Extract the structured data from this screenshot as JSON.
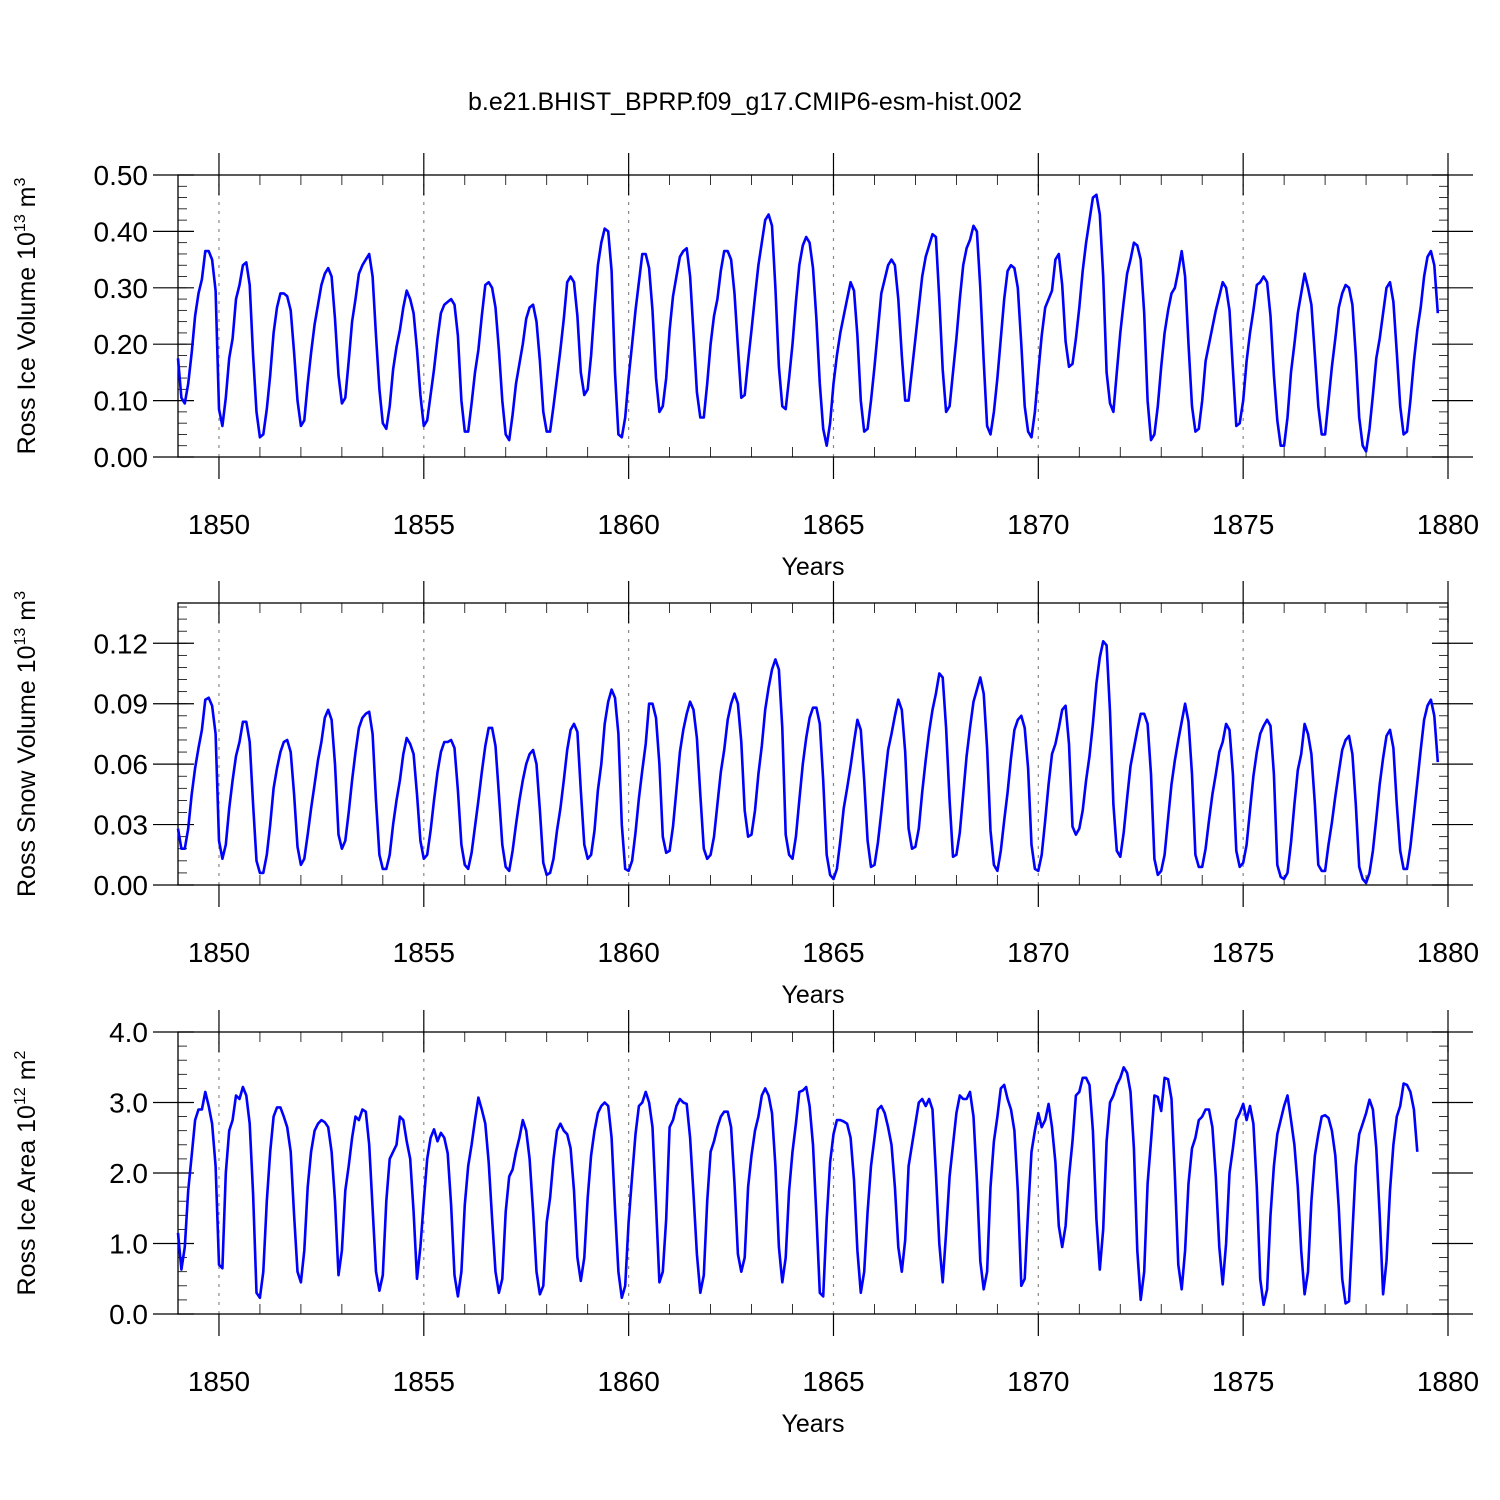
{
  "title": "b.e21.BHIST_BPRP.f09_g17.CMIP6-esm-hist.002",
  "colors": {
    "series": "#0000ff",
    "grid": "#888888",
    "axis": "#000000"
  },
  "chart_data": [
    {
      "type": "line",
      "ylabel": "Ross Ice Volume 10",
      "ylabel_exp": "13",
      "ylabel_unit": " m",
      "ylabel_unit_exp": "3",
      "xlabel": "Years",
      "xlim": [
        1849.0,
        1880.0
      ],
      "ylim": [
        0.0,
        0.5
      ],
      "x_ticks": [
        1850,
        1855,
        1860,
        1865,
        1870,
        1875,
        1880
      ],
      "y_ticks": [
        0.0,
        0.1,
        0.2,
        0.3,
        0.4,
        0.5
      ],
      "y_tick_labels": [
        "0.00",
        "0.10",
        "0.20",
        "0.30",
        "0.40",
        "0.50"
      ],
      "grid": "dashed vertical at 5-year ticks",
      "start_year": 1849.0,
      "step": 0.0833333,
      "values": [
        0.175,
        0.105,
        0.095,
        0.13,
        0.185,
        0.25,
        0.29,
        0.315,
        0.365,
        0.365,
        0.35,
        0.295,
        0.085,
        0.055,
        0.105,
        0.175,
        0.21,
        0.28,
        0.305,
        0.34,
        0.345,
        0.305,
        0.18,
        0.08,
        0.035,
        0.04,
        0.085,
        0.145,
        0.22,
        0.265,
        0.29,
        0.29,
        0.285,
        0.26,
        0.185,
        0.1,
        0.055,
        0.065,
        0.13,
        0.185,
        0.235,
        0.27,
        0.305,
        0.325,
        0.335,
        0.32,
        0.245,
        0.145,
        0.095,
        0.105,
        0.17,
        0.24,
        0.28,
        0.325,
        0.34,
        0.35,
        0.36,
        0.32,
        0.215,
        0.12,
        0.06,
        0.05,
        0.09,
        0.155,
        0.195,
        0.225,
        0.265,
        0.295,
        0.28,
        0.255,
        0.19,
        0.11,
        0.055,
        0.065,
        0.11,
        0.155,
        0.21,
        0.255,
        0.27,
        0.275,
        0.28,
        0.27,
        0.215,
        0.1,
        0.045,
        0.045,
        0.095,
        0.15,
        0.19,
        0.25,
        0.305,
        0.31,
        0.3,
        0.265,
        0.19,
        0.1,
        0.04,
        0.03,
        0.075,
        0.13,
        0.165,
        0.2,
        0.245,
        0.265,
        0.27,
        0.24,
        0.17,
        0.08,
        0.045,
        0.045,
        0.09,
        0.14,
        0.19,
        0.245,
        0.31,
        0.32,
        0.31,
        0.25,
        0.15,
        0.11,
        0.12,
        0.18,
        0.265,
        0.34,
        0.38,
        0.405,
        0.4,
        0.33,
        0.15,
        0.04,
        0.035,
        0.07,
        0.14,
        0.2,
        0.26,
        0.31,
        0.36,
        0.36,
        0.335,
        0.26,
        0.14,
        0.08,
        0.09,
        0.14,
        0.225,
        0.285,
        0.32,
        0.355,
        0.365,
        0.37,
        0.32,
        0.22,
        0.115,
        0.07,
        0.07,
        0.13,
        0.2,
        0.25,
        0.28,
        0.33,
        0.365,
        0.365,
        0.35,
        0.29,
        0.195,
        0.105,
        0.11,
        0.17,
        0.225,
        0.285,
        0.34,
        0.38,
        0.42,
        0.43,
        0.41,
        0.3,
        0.16,
        0.09,
        0.085,
        0.14,
        0.2,
        0.275,
        0.34,
        0.375,
        0.39,
        0.38,
        0.335,
        0.245,
        0.13,
        0.05,
        0.02,
        0.06,
        0.13,
        0.18,
        0.22,
        0.25,
        0.28,
        0.31,
        0.295,
        0.215,
        0.1,
        0.045,
        0.05,
        0.1,
        0.16,
        0.225,
        0.29,
        0.315,
        0.34,
        0.35,
        0.34,
        0.28,
        0.18,
        0.1,
        0.1,
        0.155,
        0.21,
        0.265,
        0.32,
        0.355,
        0.375,
        0.395,
        0.39,
        0.28,
        0.155,
        0.08,
        0.09,
        0.15,
        0.21,
        0.28,
        0.34,
        0.37,
        0.385,
        0.41,
        0.4,
        0.3,
        0.17,
        0.055,
        0.04,
        0.08,
        0.14,
        0.21,
        0.28,
        0.33,
        0.34,
        0.335,
        0.3,
        0.2,
        0.09,
        0.045,
        0.035,
        0.08,
        0.15,
        0.215,
        0.265,
        0.28,
        0.295,
        0.35,
        0.36,
        0.305,
        0.205,
        0.16,
        0.165,
        0.21,
        0.265,
        0.33,
        0.38,
        0.42,
        0.46,
        0.465,
        0.43,
        0.32,
        0.15,
        0.095,
        0.08,
        0.15,
        0.22,
        0.275,
        0.325,
        0.35,
        0.38,
        0.375,
        0.35,
        0.255,
        0.1,
        0.03,
        0.04,
        0.09,
        0.16,
        0.22,
        0.26,
        0.29,
        0.3,
        0.33,
        0.365,
        0.32,
        0.2,
        0.09,
        0.045,
        0.05,
        0.1,
        0.17,
        0.2,
        0.23,
        0.26,
        0.285,
        0.31,
        0.3,
        0.26,
        0.155,
        0.055,
        0.06,
        0.1,
        0.17,
        0.22,
        0.26,
        0.305,
        0.31,
        0.32,
        0.31,
        0.25,
        0.145,
        0.065,
        0.02,
        0.02,
        0.07,
        0.15,
        0.2,
        0.255,
        0.29,
        0.325,
        0.3,
        0.27,
        0.18,
        0.09,
        0.04,
        0.04,
        0.1,
        0.16,
        0.21,
        0.265,
        0.29,
        0.305,
        0.3,
        0.27,
        0.18,
        0.07,
        0.02,
        0.01,
        0.05,
        0.11,
        0.175,
        0.21,
        0.255,
        0.3,
        0.31,
        0.275,
        0.185,
        0.09,
        0.04,
        0.045,
        0.1,
        0.17,
        0.225,
        0.265,
        0.32,
        0.355,
        0.365,
        0.34,
        0.255
      ]
    },
    {
      "type": "line",
      "ylabel": "Ross Snow Volume 10",
      "ylabel_exp": "13",
      "ylabel_unit": " m",
      "ylabel_unit_exp": "3",
      "xlabel": "Years",
      "xlim": [
        1849.0,
        1880.0
      ],
      "ylim": [
        0.0,
        0.14
      ],
      "x_ticks": [
        1850,
        1855,
        1860,
        1865,
        1870,
        1875,
        1880
      ],
      "y_ticks": [
        0.0,
        0.03,
        0.06,
        0.09,
        0.12
      ],
      "y_tick_labels": [
        "0.00",
        "0.03",
        "0.06",
        "0.09",
        "0.12"
      ],
      "grid": "dashed vertical at 5-year ticks",
      "start_year": 1849.0,
      "step": 0.0833333,
      "values": [
        0.028,
        0.018,
        0.018,
        0.028,
        0.045,
        0.058,
        0.068,
        0.077,
        0.092,
        0.093,
        0.089,
        0.075,
        0.022,
        0.013,
        0.02,
        0.038,
        0.052,
        0.064,
        0.071,
        0.081,
        0.081,
        0.071,
        0.04,
        0.012,
        0.006,
        0.006,
        0.015,
        0.03,
        0.048,
        0.058,
        0.066,
        0.071,
        0.072,
        0.066,
        0.045,
        0.019,
        0.01,
        0.013,
        0.025,
        0.038,
        0.05,
        0.062,
        0.071,
        0.083,
        0.087,
        0.082,
        0.06,
        0.025,
        0.018,
        0.022,
        0.036,
        0.052,
        0.066,
        0.078,
        0.083,
        0.085,
        0.086,
        0.075,
        0.042,
        0.015,
        0.008,
        0.008,
        0.015,
        0.03,
        0.042,
        0.052,
        0.065,
        0.073,
        0.07,
        0.065,
        0.045,
        0.022,
        0.013,
        0.015,
        0.027,
        0.042,
        0.056,
        0.066,
        0.071,
        0.071,
        0.072,
        0.068,
        0.047,
        0.02,
        0.01,
        0.008,
        0.016,
        0.029,
        0.042,
        0.056,
        0.069,
        0.078,
        0.078,
        0.069,
        0.045,
        0.02,
        0.009,
        0.007,
        0.017,
        0.03,
        0.042,
        0.052,
        0.06,
        0.065,
        0.067,
        0.06,
        0.037,
        0.011,
        0.005,
        0.006,
        0.013,
        0.027,
        0.038,
        0.052,
        0.067,
        0.077,
        0.08,
        0.076,
        0.047,
        0.02,
        0.013,
        0.015,
        0.027,
        0.047,
        0.06,
        0.08,
        0.091,
        0.097,
        0.093,
        0.075,
        0.03,
        0.008,
        0.007,
        0.012,
        0.026,
        0.043,
        0.057,
        0.07,
        0.09,
        0.09,
        0.083,
        0.06,
        0.024,
        0.016,
        0.017,
        0.029,
        0.047,
        0.066,
        0.077,
        0.085,
        0.091,
        0.087,
        0.073,
        0.045,
        0.018,
        0.013,
        0.015,
        0.024,
        0.04,
        0.056,
        0.067,
        0.082,
        0.09,
        0.095,
        0.09,
        0.071,
        0.037,
        0.024,
        0.025,
        0.037,
        0.055,
        0.069,
        0.087,
        0.098,
        0.107,
        0.112,
        0.107,
        0.078,
        0.025,
        0.015,
        0.013,
        0.024,
        0.042,
        0.06,
        0.073,
        0.083,
        0.088,
        0.088,
        0.08,
        0.052,
        0.015,
        0.005,
        0.003,
        0.008,
        0.022,
        0.038,
        0.048,
        0.059,
        0.071,
        0.082,
        0.077,
        0.052,
        0.022,
        0.009,
        0.01,
        0.021,
        0.036,
        0.052,
        0.067,
        0.075,
        0.084,
        0.092,
        0.087,
        0.066,
        0.028,
        0.018,
        0.019,
        0.028,
        0.046,
        0.062,
        0.076,
        0.087,
        0.095,
        0.105,
        0.103,
        0.078,
        0.042,
        0.014,
        0.015,
        0.026,
        0.045,
        0.064,
        0.078,
        0.091,
        0.097,
        0.103,
        0.095,
        0.068,
        0.027,
        0.01,
        0.007,
        0.017,
        0.032,
        0.046,
        0.063,
        0.077,
        0.082,
        0.084,
        0.078,
        0.058,
        0.02,
        0.008,
        0.007,
        0.015,
        0.032,
        0.05,
        0.065,
        0.07,
        0.078,
        0.087,
        0.089,
        0.07,
        0.029,
        0.025,
        0.028,
        0.037,
        0.052,
        0.064,
        0.08,
        0.1,
        0.113,
        0.121,
        0.119,
        0.086,
        0.04,
        0.017,
        0.014,
        0.026,
        0.043,
        0.059,
        0.068,
        0.077,
        0.085,
        0.085,
        0.08,
        0.055,
        0.013,
        0.005,
        0.007,
        0.015,
        0.033,
        0.05,
        0.062,
        0.072,
        0.081,
        0.09,
        0.081,
        0.055,
        0.015,
        0.009,
        0.009,
        0.018,
        0.032,
        0.045,
        0.055,
        0.066,
        0.071,
        0.08,
        0.077,
        0.055,
        0.017,
        0.009,
        0.011,
        0.02,
        0.037,
        0.054,
        0.066,
        0.075,
        0.079,
        0.082,
        0.079,
        0.055,
        0.01,
        0.004,
        0.003,
        0.006,
        0.021,
        0.04,
        0.057,
        0.065,
        0.08,
        0.075,
        0.065,
        0.04,
        0.01,
        0.007,
        0.007,
        0.02,
        0.031,
        0.044,
        0.056,
        0.067,
        0.072,
        0.074,
        0.065,
        0.04,
        0.009,
        0.003,
        0.001,
        0.006,
        0.017,
        0.033,
        0.05,
        0.063,
        0.074,
        0.077,
        0.068,
        0.04,
        0.017,
        0.008,
        0.008,
        0.019,
        0.035,
        0.051,
        0.067,
        0.082,
        0.089,
        0.092,
        0.084,
        0.061
      ]
    },
    {
      "type": "line",
      "ylabel": "Ross Ice Area 10",
      "ylabel_exp": "12",
      "ylabel_unit": " m",
      "ylabel_unit_exp": "2",
      "xlabel": "Years",
      "xlim": [
        1849.0,
        1880.0
      ],
      "ylim": [
        0.0,
        4.0
      ],
      "x_ticks": [
        1850,
        1855,
        1860,
        1865,
        1870,
        1875,
        1880
      ],
      "y_ticks": [
        0.0,
        1.0,
        2.0,
        3.0,
        4.0
      ],
      "y_tick_labels": [
        "0.0",
        "1.0",
        "2.0",
        "3.0",
        "4.0"
      ],
      "grid": "dashed vertical at 5-year ticks",
      "start_year": 1849.0,
      "step": 0.0833333,
      "values": [
        1.15,
        0.63,
        0.95,
        1.75,
        2.25,
        2.75,
        2.9,
        2.9,
        3.15,
        2.95,
        2.7,
        2.1,
        0.7,
        0.65,
        2.0,
        2.6,
        2.75,
        3.1,
        3.05,
        3.22,
        3.1,
        2.7,
        1.7,
        0.3,
        0.23,
        0.6,
        1.6,
        2.3,
        2.8,
        2.93,
        2.93,
        2.8,
        2.65,
        2.3,
        1.4,
        0.6,
        0.45,
        0.9,
        1.8,
        2.3,
        2.6,
        2.7,
        2.75,
        2.72,
        2.65,
        2.3,
        1.6,
        0.55,
        0.9,
        1.75,
        2.1,
        2.5,
        2.8,
        2.75,
        2.9,
        2.87,
        2.4,
        1.5,
        0.6,
        0.33,
        0.55,
        1.6,
        2.2,
        2.3,
        2.4,
        2.8,
        2.75,
        2.45,
        2.2,
        1.45,
        0.5,
        0.95,
        1.6,
        2.2,
        2.5,
        2.62,
        2.45,
        2.57,
        2.5,
        2.28,
        1.55,
        0.55,
        0.25,
        0.6,
        1.55,
        2.1,
        2.4,
        2.75,
        3.07,
        2.9,
        2.7,
        2.15,
        1.35,
        0.6,
        0.3,
        0.5,
        1.45,
        1.95,
        2.05,
        2.3,
        2.5,
        2.75,
        2.6,
        2.2,
        1.45,
        0.6,
        0.28,
        0.4,
        1.3,
        1.65,
        2.2,
        2.6,
        2.7,
        2.6,
        2.55,
        2.35,
        1.75,
        0.8,
        0.47,
        0.8,
        1.65,
        2.25,
        2.6,
        2.85,
        2.95,
        3.0,
        2.95,
        2.5,
        1.5,
        0.6,
        0.23,
        0.4,
        1.3,
        1.95,
        2.55,
        2.95,
        3.0,
        3.15,
        3.0,
        2.65,
        1.55,
        0.45,
        0.6,
        1.35,
        2.65,
        2.75,
        2.95,
        3.05,
        3.0,
        2.98,
        2.5,
        1.7,
        0.85,
        0.3,
        0.55,
        1.6,
        2.3,
        2.45,
        2.65,
        2.8,
        2.87,
        2.87,
        2.65,
        1.85,
        0.85,
        0.6,
        0.8,
        1.8,
        2.25,
        2.6,
        2.8,
        3.1,
        3.2,
        3.1,
        2.85,
        2.1,
        0.95,
        0.45,
        0.8,
        1.75,
        2.3,
        2.7,
        3.15,
        3.17,
        3.22,
        2.95,
        2.4,
        1.4,
        0.3,
        0.25,
        1.35,
        2.15,
        2.55,
        2.75,
        2.75,
        2.73,
        2.7,
        2.5,
        1.9,
        0.9,
        0.3,
        0.6,
        1.45,
        2.1,
        2.5,
        2.9,
        2.95,
        2.85,
        2.65,
        2.4,
        1.8,
        0.95,
        0.6,
        1.05,
        2.1,
        2.4,
        2.7,
        3.0,
        3.05,
        2.95,
        3.05,
        2.9,
        2.0,
        1.0,
        0.45,
        1.15,
        1.95,
        2.4,
        2.85,
        3.1,
        3.05,
        3.05,
        3.15,
        2.8,
        1.9,
        0.75,
        0.35,
        0.6,
        1.8,
        2.45,
        2.8,
        3.2,
        3.25,
        3.05,
        2.9,
        2.6,
        1.75,
        0.4,
        0.5,
        1.45,
        2.3,
        2.6,
        2.85,
        2.65,
        2.75,
        2.98,
        2.65,
        2.15,
        1.25,
        0.95,
        1.25,
        1.95,
        2.45,
        3.1,
        3.15,
        3.35,
        3.35,
        3.25,
        2.6,
        1.35,
        0.63,
        1.2,
        2.45,
        3.0,
        3.1,
        3.25,
        3.35,
        3.5,
        3.42,
        3.15,
        2.35,
        0.9,
        0.2,
        0.6,
        1.85,
        2.45,
        3.1,
        3.08,
        2.88,
        3.35,
        3.33,
        3.05,
        1.95,
        0.7,
        0.35,
        0.9,
        1.85,
        2.35,
        2.5,
        2.75,
        2.8,
        2.9,
        2.9,
        2.65,
        1.95,
        0.95,
        0.42,
        1.0,
        2.0,
        2.35,
        2.75,
        2.85,
        2.98,
        2.75,
        2.95,
        2.7,
        1.8,
        0.5,
        0.13,
        0.35,
        1.4,
        2.1,
        2.55,
        2.75,
        2.95,
        3.1,
        2.75,
        2.4,
        1.8,
        0.9,
        0.28,
        0.6,
        1.6,
        2.25,
        2.55,
        2.8,
        2.82,
        2.78,
        2.6,
        2.25,
        1.5,
        0.5,
        0.15,
        0.18,
        1.15,
        2.1,
        2.55,
        2.7,
        2.85,
        3.04,
        2.9,
        2.35,
        1.4,
        0.28,
        0.75,
        1.75,
        2.4,
        2.8,
        2.95,
        3.27,
        3.25,
        3.15,
        2.9,
        2.3
      ]
    }
  ]
}
